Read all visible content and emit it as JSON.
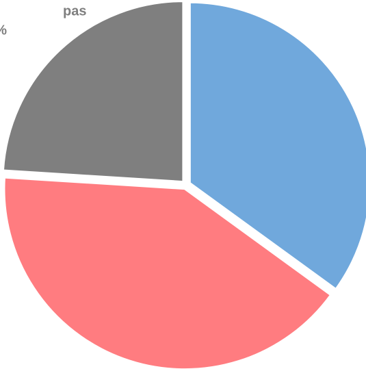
{
  "chart_data": {
    "type": "pie",
    "categories": [
      null,
      null,
      null
    ],
    "values": [
      35,
      41,
      24
    ],
    "colors": [
      "#70a8dc",
      "#ff7c80",
      "#7f7f7f"
    ],
    "annotations": [
      "pas",
      "%"
    ]
  }
}
